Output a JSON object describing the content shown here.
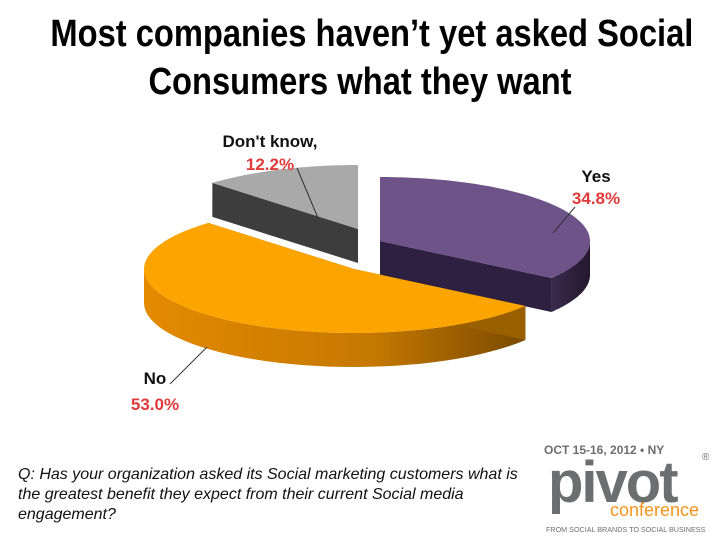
{
  "slide": {
    "title_line1": "Most companies haven’t yet asked Social",
    "title_line2": "Consumers what they want",
    "question": "Q: Has your organization asked its Social marketing customers what is the greatest benefit they expect from their current Social media engagement?"
  },
  "chart_data": {
    "type": "pie",
    "style": "3d-exploded",
    "title": "",
    "slices": [
      {
        "label": "Yes",
        "value": 34.8,
        "value_label": "34.8%",
        "color": "#6e5389"
      },
      {
        "label": "No",
        "value": 53.0,
        "value_label": "53.0%",
        "color": "#fca400"
      },
      {
        "label": "Don't know,",
        "value": 12.2,
        "value_label": "12.2%",
        "color": "#a9a9a9"
      }
    ]
  },
  "logo": {
    "date_line": "OCT 15-16, 2012 • NY",
    "brand": "pivot",
    "sub": "conference",
    "tagline": "FROM SOCIAL BRANDS TO SOCIAL BUSINESS",
    "mark": "®"
  },
  "colors": {
    "label_value": "#e03a3a",
    "brand_gray": "#6d6e70",
    "brand_orange": "#f7941d"
  }
}
